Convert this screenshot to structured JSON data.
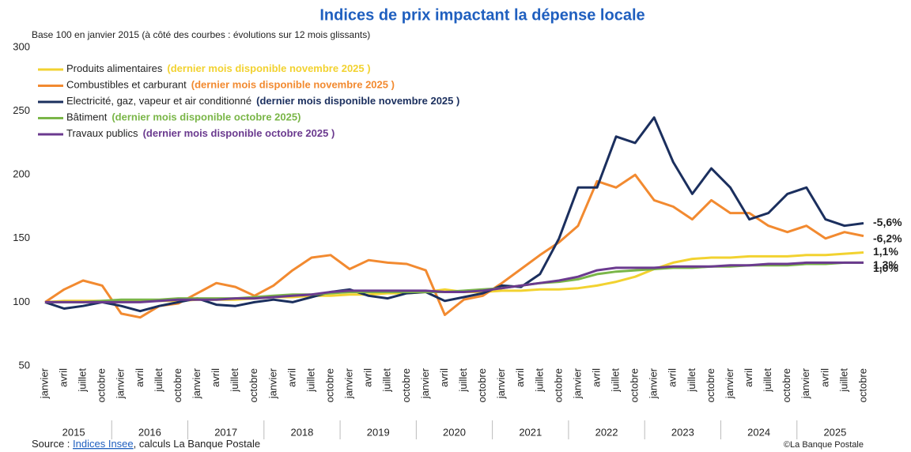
{
  "chart_data": {
    "type": "line",
    "title": "Indices de prix impactant la dépense locale",
    "subtitle": "Base 100 en janvier 2015 (à côté des courbes : évolutions sur 12 mois glissants)",
    "source_prefix": "Source : ",
    "source_link": "Indices Insee",
    "source_suffix": ", calculs La Banque Postale",
    "credit": "©La Banque Postale",
    "ylim": [
      50,
      300
    ],
    "yticks": [
      50,
      100,
      150,
      200,
      250,
      300
    ],
    "grid": false,
    "years": [
      "2015",
      "2016",
      "2017",
      "2018",
      "2019",
      "2020",
      "2021",
      "2022",
      "2023",
      "2024",
      "2025"
    ],
    "categories": [
      "janvier",
      "avril",
      "juillet",
      "octobre",
      "janvier",
      "avril",
      "juillet",
      "octobre",
      "janvier",
      "avril",
      "juillet",
      "octobre",
      "janvier",
      "avril",
      "juillet",
      "octobre",
      "janvier",
      "avril",
      "juillet",
      "octobre",
      "janvier",
      "avril",
      "juillet",
      "octobre",
      "janvier",
      "avril",
      "juillet",
      "octobre",
      "janvier",
      "avril",
      "juillet",
      "octobre",
      "janvier",
      "avril",
      "juillet",
      "octobre",
      "janvier",
      "avril",
      "juillet",
      "octobre",
      "janvier",
      "avril",
      "juillet",
      "octobre"
    ],
    "series": [
      {
        "name": "Produits alimentaires",
        "note": "(dernier mois disponible  novembre 2025 )",
        "annotation": "1,1%",
        "color": "#f2d230",
        "values": [
          100,
          101,
          101,
          101,
          101,
          101,
          101,
          101,
          102,
          102,
          102,
          103,
          104,
          104,
          105,
          105,
          106,
          106,
          107,
          107,
          108,
          110,
          108,
          108,
          109,
          109,
          110,
          110,
          111,
          113,
          116,
          120,
          126,
          131,
          134,
          135,
          135,
          136,
          136,
          136,
          137,
          137,
          138,
          139
        ]
      },
      {
        "name": "Combustibles et carburant",
        "note": "(dernier mois disponible novembre 2025 )",
        "annotation": "-6,2%",
        "color": "#f28a30",
        "values": [
          100,
          110,
          117,
          113,
          91,
          88,
          97,
          99,
          107,
          115,
          112,
          105,
          113,
          125,
          135,
          137,
          126,
          133,
          131,
          130,
          125,
          90,
          102,
          105,
          115,
          126,
          137,
          147,
          160,
          195,
          190,
          200,
          180,
          175,
          165,
          180,
          170,
          170,
          160,
          155,
          160,
          150,
          155,
          152
        ]
      },
      {
        "name": "Electricité, gaz, vapeur et air conditionné",
        "note": "(dernier mois disponible novembre 2025 )",
        "annotation": "-5,6%",
        "color": "#1b2f5e",
        "values": [
          100,
          95,
          97,
          100,
          97,
          93,
          97,
          100,
          103,
          98,
          97,
          100,
          102,
          100,
          104,
          108,
          110,
          105,
          103,
          107,
          108,
          101,
          104,
          107,
          113,
          112,
          122,
          150,
          190,
          190,
          230,
          225,
          245,
          210,
          185,
          205,
          190,
          165,
          170,
          185,
          190,
          165,
          160,
          162
        ]
      },
      {
        "name": "Bâtiment",
        "note": "(dernier mois disponible octobre 2025)",
        "annotation": "1,3%",
        "color": "#7ab648",
        "values": [
          100,
          100,
          100,
          101,
          102,
          102,
          102,
          103,
          103,
          103,
          103,
          104,
          105,
          106,
          106,
          107,
          108,
          108,
          108,
          108,
          108,
          108,
          109,
          110,
          111,
          113,
          115,
          116,
          118,
          122,
          124,
          125,
          126,
          127,
          127,
          128,
          128,
          129,
          129,
          129,
          130,
          130,
          131,
          131
        ]
      },
      {
        "name": "Travaux publics",
        "note": "(dernier mois disponible octobre 2025 )",
        "annotation": "1,0%",
        "color": "#6b3a8f",
        "values": [
          100,
          100,
          100,
          100,
          100,
          100,
          101,
          102,
          102,
          102,
          103,
          103,
          104,
          105,
          106,
          108,
          109,
          109,
          109,
          109,
          109,
          108,
          108,
          109,
          111,
          113,
          115,
          117,
          120,
          125,
          127,
          127,
          127,
          128,
          128,
          128,
          129,
          129,
          130,
          130,
          131,
          131,
          131,
          131
        ]
      }
    ]
  }
}
